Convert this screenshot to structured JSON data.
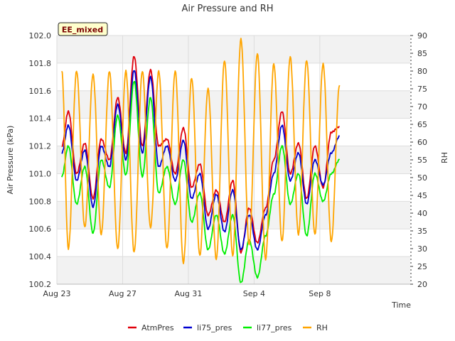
{
  "chart_data": {
    "type": "line",
    "title": "Air Pressure and RH",
    "badge": "EE_mixed",
    "xlabel": "Time",
    "ylabel": "Air Pressure (kPa)",
    "y2label": "RH",
    "xlim": [
      0,
      21.5
    ],
    "ylim": [
      100.2,
      102.0
    ],
    "y2lim": [
      20,
      90
    ],
    "x_ticks": [
      {
        "x": 0,
        "label": "Aug 23"
      },
      {
        "x": 4,
        "label": "Aug 27"
      },
      {
        "x": 8,
        "label": "Aug 31"
      },
      {
        "x": 12,
        "label": "Sep 4"
      },
      {
        "x": 16,
        "label": "Sep 8"
      }
    ],
    "y_ticks": [
      "100.2",
      "100.4",
      "100.6",
      "100.8",
      "101.0",
      "101.2",
      "101.4",
      "101.6",
      "101.8",
      "102.0"
    ],
    "y2_ticks": [
      "20",
      "25",
      "30",
      "35",
      "40",
      "45",
      "50",
      "55",
      "60",
      "65",
      "70",
      "75",
      "80",
      "85",
      "90"
    ],
    "x": [
      0.3,
      0.7,
      1.2,
      1.7,
      2.2,
      2.7,
      3.2,
      3.7,
      4.2,
      4.7,
      5.2,
      5.7,
      6.2,
      6.7,
      7.2,
      7.7,
      8.2,
      8.7,
      9.2,
      9.7,
      10.2,
      10.7,
      11.2,
      11.7,
      12.2,
      12.7,
      13.2,
      13.7,
      14.2,
      14.7,
      15.2,
      15.7,
      16.2,
      16.7,
      17.2
    ],
    "series": [
      {
        "name": "AtmPres",
        "color": "#e0000b",
        "axis": "left",
        "values": [
          101.2,
          101.45,
          101.0,
          101.22,
          100.82,
          101.25,
          101.1,
          101.55,
          101.15,
          101.85,
          101.2,
          101.75,
          101.2,
          101.25,
          101.0,
          101.33,
          100.9,
          101.07,
          100.7,
          100.88,
          100.65,
          100.95,
          100.43,
          100.75,
          100.5,
          100.75,
          101.1,
          101.45,
          101.0,
          101.22,
          100.82,
          101.2,
          100.9,
          101.3,
          101.34
        ]
      },
      {
        "name": "li75_pres",
        "color": "#0000d0",
        "axis": "left",
        "values": [
          101.15,
          101.35,
          100.95,
          101.17,
          100.76,
          101.2,
          101.05,
          101.5,
          101.1,
          101.75,
          101.15,
          101.7,
          101.05,
          101.2,
          100.95,
          101.24,
          100.82,
          101.0,
          100.6,
          100.85,
          100.58,
          100.88,
          100.45,
          100.7,
          100.45,
          100.7,
          101.0,
          101.35,
          100.95,
          101.15,
          100.78,
          101.1,
          100.92,
          101.15,
          101.27
        ]
      },
      {
        "name": "li77_pres",
        "color": "#00ee00",
        "axis": "left",
        "values": [
          100.98,
          101.2,
          100.78,
          101.05,
          100.57,
          101.1,
          100.9,
          101.42,
          100.99,
          101.67,
          100.98,
          101.55,
          100.86,
          101.05,
          100.78,
          101.1,
          100.65,
          100.86,
          100.45,
          100.7,
          100.42,
          100.7,
          100.21,
          100.52,
          100.25,
          100.55,
          100.85,
          101.2,
          100.78,
          101.0,
          100.55,
          101.0,
          100.8,
          101.0,
          101.1
        ]
      },
      {
        "name": "RH",
        "color": "#ffa500",
        "axis": "right",
        "values": [
          80,
          30,
          80,
          36,
          79,
          34,
          80,
          30,
          80,
          29,
          80,
          36,
          80,
          30,
          80,
          26,
          78,
          28,
          75,
          27,
          83,
          28,
          89,
          31,
          85,
          27,
          82,
          32,
          84,
          34,
          83,
          34,
          82,
          32,
          76
        ]
      }
    ],
    "legend_position": "bottom",
    "grid": true
  }
}
